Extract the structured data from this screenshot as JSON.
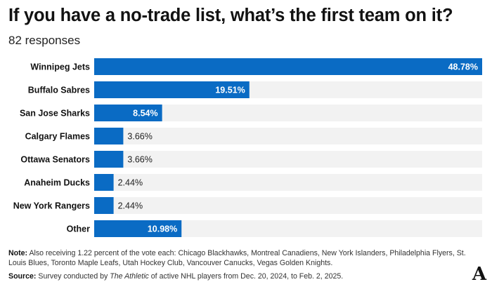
{
  "title": "If you have a no-trade list, what’s the first team on it?",
  "subtitle": "82 responses",
  "chart_data": {
    "type": "bar",
    "orientation": "horizontal",
    "categories": [
      "Winnipeg Jets",
      "Buffalo Sabres",
      "San Jose Sharks",
      "Calgary Flames",
      "Ottawa Senators",
      "Anaheim Ducks",
      "New York Rangers",
      "Other"
    ],
    "values": [
      48.78,
      19.51,
      8.54,
      3.66,
      3.66,
      2.44,
      2.44,
      10.98
    ],
    "value_labels": [
      "48.78%",
      "19.51%",
      "8.54%",
      "3.66%",
      "3.66%",
      "2.44%",
      "2.44%",
      "10.98%"
    ],
    "xlim": [
      0,
      48.78
    ],
    "grid": false,
    "bar_color": "#0a6bc4",
    "track_color": "#f2f2f2"
  },
  "note": {
    "label": "Note:",
    "text": "Also receiving 1.22 percent of the vote each: Chicago Blackhawks, Montreal Canadiens, New York Islanders, Philadelphia Flyers, St. Louis Blues, Toronto Maple Leafs, Utah Hockey Club, Vancouver Canucks, Vegas Golden Knights."
  },
  "source": {
    "label": "Source:",
    "text_before": "Survey conducted by ",
    "publication": "The Athletic",
    "text_after": " of active NHL players from Dec. 20, 2024, to Feb. 2, 2025."
  },
  "logo": "A"
}
